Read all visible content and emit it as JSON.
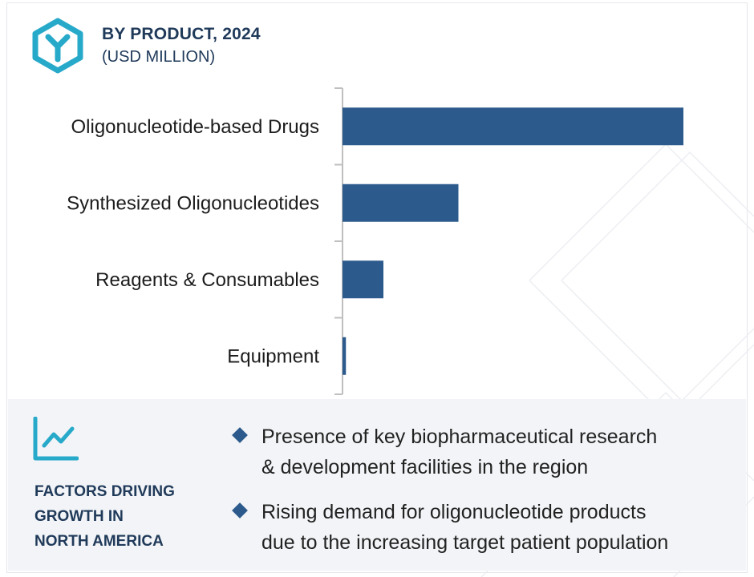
{
  "header": {
    "title": "BY PRODUCT, 2024",
    "subtitle": "(USD MILLION)"
  },
  "colors": {
    "bar": "#2c5a8c",
    "heading": "#203a5a",
    "panel_bg": "#f2f4f7",
    "icon_teal": "#27a9c9"
  },
  "icons": {
    "header": "hexagon-y-logo-icon",
    "factors": "line-chart-trend-icon",
    "bullet": "diamond-bullet-icon"
  },
  "chart_data": {
    "type": "bar",
    "orientation": "horizontal",
    "title": "BY PRODUCT, 2024",
    "subtitle": "(USD MILLION)",
    "categories": [
      "Oligonucleotide-based Drugs",
      "Synthesized Oligonucleotides",
      "Reagents & Consumables",
      "Equipment"
    ],
    "values": [
      100,
      34,
      12,
      1
    ],
    "xlim": [
      0,
      100
    ],
    "grid": false,
    "legend": "none"
  },
  "factors": {
    "title_lines": [
      "FACTORS DRIVING",
      "GROWTH IN",
      "NORTH AMERICA"
    ],
    "bullets": [
      {
        "line1": "Presence of key biopharmaceutical research",
        "line2": "& development facilities in the region"
      },
      {
        "line1": "Rising demand for oligonucleotide products",
        "line2": "due to the increasing target patient population"
      }
    ]
  }
}
